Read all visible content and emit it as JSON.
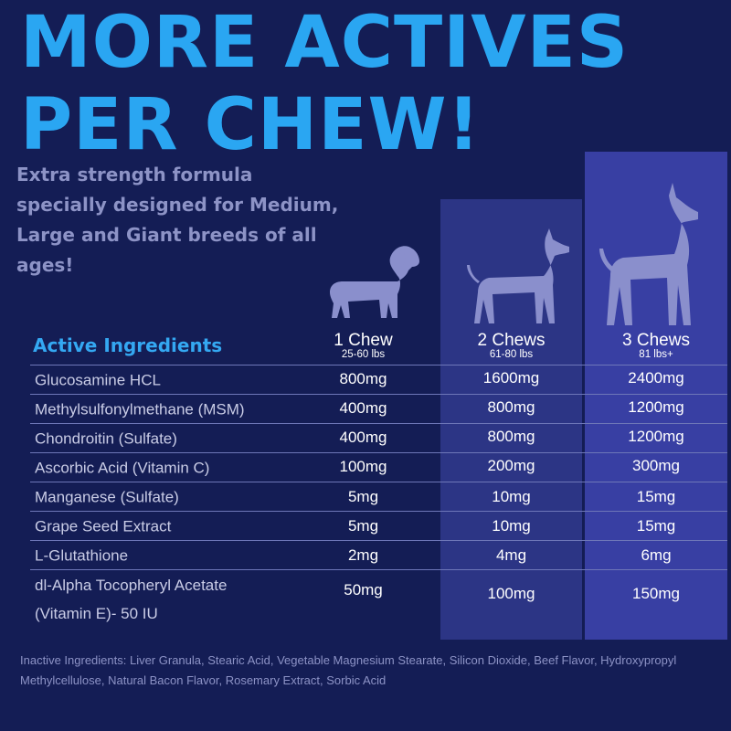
{
  "headline": {
    "line1": "MORE ACTIVES",
    "line2": "PER CHEW!"
  },
  "subhead": "Extra strength formula specially designed for Medium, Large and Giant breeds of all ages!",
  "colors": {
    "background": "#141d55",
    "headline": "#2aa6f2",
    "col2": "#2c3585",
    "col3": "#383fa3",
    "dog": "#8a8fcc"
  },
  "table": {
    "title": "Active Ingredients",
    "columns": [
      {
        "chews": "1 Chew",
        "weight": "25-60 lbs",
        "icon": "medium-dog-icon"
      },
      {
        "chews": "2 Chews",
        "weight": "61-80 lbs",
        "icon": "large-dog-icon"
      },
      {
        "chews": "3 Chews",
        "weight": "81 lbs+",
        "icon": "giant-dog-icon"
      }
    ],
    "rows": [
      {
        "name": "Glucosamine HCL",
        "v1": "800mg",
        "v2": "1600mg",
        "v3": "2400mg"
      },
      {
        "name": "Methylsulfonylmethane (MSM)",
        "v1": "400mg",
        "v2": "800mg",
        "v3": "1200mg"
      },
      {
        "name": "Chondroitin (Sulfate)",
        "v1": "400mg",
        "v2": "800mg",
        "v3": "1200mg"
      },
      {
        "name": "Ascorbic Acid (Vitamin C)",
        "v1": "100mg",
        "v2": "200mg",
        "v3": "300mg"
      },
      {
        "name": "Manganese (Sulfate)",
        "v1": "5mg",
        "v2": "10mg",
        "v3": "15mg"
      },
      {
        "name": "Grape Seed Extract",
        "v1": "5mg",
        "v2": "10mg",
        "v3": "15mg"
      },
      {
        "name": "L-Glutathione",
        "v1": "2mg",
        "v2": "4mg",
        "v3": "6mg"
      },
      {
        "name": "dl-Alpha Tocopheryl Acetate\n(Vitamin E)- 50 IU",
        "v1": "50mg",
        "v2": "100mg",
        "v3": "150mg"
      }
    ]
  },
  "inactive": "Inactive Ingredients: Liver Granula, Stearic Acid, Vegetable Magnesium Stearate, Silicon Dioxide, Beef Flavor, Hydroxypropyl Methylcellulose, Natural Bacon Flavor, Rosemary Extract, Sorbic Acid"
}
